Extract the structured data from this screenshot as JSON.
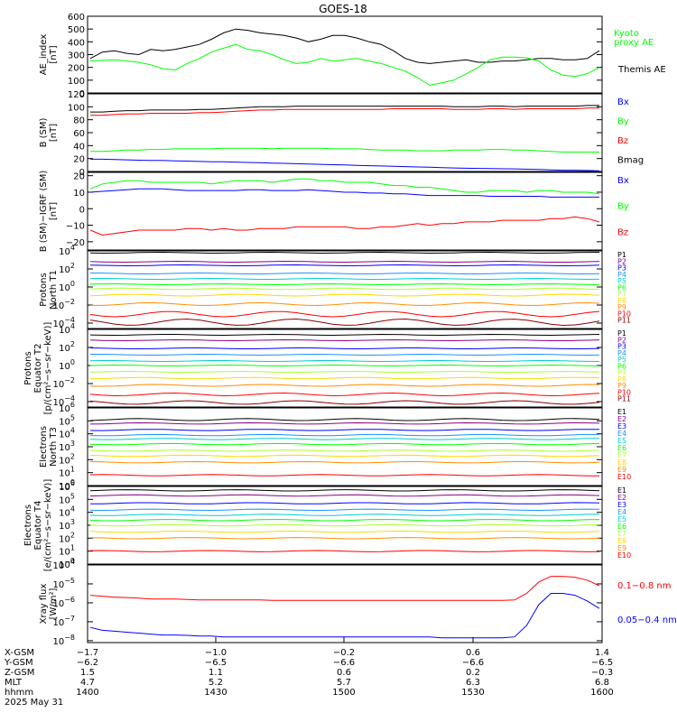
{
  "title": "GOES-18",
  "chart_data": [
    {
      "id": "ae",
      "type": "line",
      "ylabel": [
        "AE_index",
        "[nT]"
      ],
      "ylim": [
        0,
        600
      ],
      "log": false,
      "ticks": [
        "0",
        "100",
        "200",
        "300",
        "400",
        "500",
        "600"
      ],
      "tick_values": [
        0,
        100,
        200,
        300,
        400,
        500,
        600
      ],
      "series": [
        {
          "name": "Themis AE",
          "color": "#000000",
          "values": [
            270,
            320,
            330,
            310,
            300,
            340,
            330,
            340,
            360,
            380,
            420,
            470,
            500,
            490,
            470,
            460,
            450,
            430,
            400,
            420,
            450,
            450,
            430,
            400,
            380,
            330,
            270,
            240,
            230,
            240,
            250,
            260,
            240,
            240,
            250,
            250,
            260,
            270,
            270,
            260,
            260,
            270,
            330
          ]
        },
        {
          "name": "Kyoto proxy AE",
          "color": "#00ff00",
          "values": [
            250,
            255,
            260,
            250,
            240,
            220,
            190,
            180,
            230,
            270,
            320,
            350,
            380,
            340,
            330,
            300,
            260,
            230,
            240,
            270,
            250,
            260,
            270,
            250,
            230,
            200,
            170,
            120,
            60,
            80,
            100,
            150,
            200,
            260,
            280,
            280,
            275,
            250,
            180,
            140,
            130,
            150,
            200
          ]
        }
      ]
    },
    {
      "id": "bsm",
      "type": "line",
      "ylabel": [
        "B (SM)",
        "[nT]"
      ],
      "ylim": [
        0,
        120
      ],
      "log": false,
      "ticks": [
        "0",
        "20",
        "40",
        "60",
        "80",
        "100",
        "120"
      ],
      "tick_values": [
        0,
        20,
        40,
        60,
        80,
        100,
        120
      ],
      "series": [
        {
          "name": "Bx",
          "color": "#0000ff",
          "values": [
            19,
            19,
            18.5,
            18,
            17.5,
            17,
            17,
            16.5,
            16,
            15.5,
            15,
            15,
            14.5,
            14,
            13.5,
            13,
            12.5,
            12,
            11.5,
            11,
            10.5,
            10,
            9.5,
            9,
            8.5,
            8,
            7.5,
            7,
            6.5,
            6,
            5.5,
            5,
            4.8,
            4.5,
            4.2,
            4,
            3.5,
            3,
            2.5,
            2,
            2,
            1.5,
            1
          ]
        },
        {
          "name": "By",
          "color": "#00ff00",
          "values": [
            31,
            31,
            32,
            33,
            33,
            34,
            34,
            35,
            35,
            35,
            35,
            36,
            36,
            36,
            36,
            35,
            36,
            36,
            36,
            36,
            35,
            35,
            35,
            34,
            33,
            33,
            33,
            32,
            32,
            32,
            33,
            33,
            33,
            34,
            34,
            33,
            33,
            32,
            31,
            30,
            30,
            30,
            30
          ]
        },
        {
          "name": "Bz",
          "color": "#ff0000",
          "values": [
            87,
            87,
            88,
            89,
            89,
            90,
            90,
            90,
            90,
            91,
            91,
            92,
            93,
            94,
            95,
            95,
            96,
            96,
            96,
            96,
            96,
            96,
            96,
            96,
            96,
            97,
            97,
            97,
            97,
            97,
            96,
            96,
            96,
            97,
            97,
            96,
            97,
            97,
            97,
            97,
            97,
            98,
            98
          ]
        },
        {
          "name": "Bmag",
          "color": "#000000",
          "values": [
            92,
            92,
            93,
            94,
            94,
            95,
            95,
            95,
            95,
            96,
            96,
            97,
            98,
            99,
            100,
            100,
            100,
            101,
            101,
            101,
            101,
            101,
            101,
            101,
            101,
            101,
            101,
            101,
            101,
            101,
            100,
            100,
            100,
            101,
            101,
            100,
            101,
            101,
            101,
            101,
            101,
            102,
            102
          ]
        }
      ]
    },
    {
      "id": "bigrf",
      "type": "line",
      "ylabel": [
        "B (SM)−IGRF (SM)",
        "[nT]"
      ],
      "ylim": [
        -25,
        22
      ],
      "log": false,
      "ticks": [
        "−20",
        "−10",
        "0",
        "10",
        "20"
      ],
      "tick_values": [
        -20,
        -10,
        0,
        10,
        20
      ],
      "series": [
        {
          "name": "Bx",
          "color": "#0000ff",
          "values": [
            10,
            10.5,
            11,
            11.5,
            12,
            12,
            12,
            11.5,
            11,
            11,
            11,
            11,
            11,
            11.5,
            11.5,
            11,
            11,
            11,
            11.5,
            11,
            10.5,
            10,
            10,
            9.5,
            9.5,
            9,
            9,
            8.5,
            8,
            8,
            8,
            8,
            8,
            7.5,
            7.5,
            7.5,
            7.5,
            7.5,
            7,
            7,
            7,
            7,
            7
          ]
        },
        {
          "name": "By",
          "color": "#00ff00",
          "values": [
            12,
            15,
            16,
            17,
            17,
            16,
            16,
            16,
            16,
            16,
            15,
            16,
            17,
            17,
            17,
            16,
            17,
            18,
            18,
            17,
            17,
            16,
            16,
            16,
            15,
            14,
            14,
            13,
            13,
            12,
            11,
            10,
            10,
            11,
            11,
            11,
            10,
            11,
            11,
            10,
            10,
            10,
            9
          ]
        },
        {
          "name": "Bz",
          "color": "#ff0000",
          "values": [
            -13,
            -16,
            -15,
            -14,
            -13,
            -13,
            -13,
            -13,
            -12,
            -12,
            -13,
            -12,
            -13,
            -13,
            -12,
            -12,
            -12,
            -11,
            -11,
            -11,
            -11,
            -11,
            -12,
            -12,
            -11,
            -11,
            -10,
            -9,
            -10,
            -9,
            -9,
            -8,
            -8,
            -8,
            -7,
            -7,
            -7,
            -7,
            -6,
            -6,
            -5,
            -6,
            -8
          ]
        }
      ]
    },
    {
      "id": "pn",
      "type": "line",
      "log": true,
      "ylabel": [
        "Protons",
        "North T1"
      ],
      "ylim_exp": [
        -4.6,
        4
      ],
      "ticks": [
        "10",
        "10",
        "10",
        "10",
        "10"
      ],
      "tick_exps": [
        "4",
        "2",
        "0",
        "−2",
        "−4"
      ],
      "tick_values": [
        4,
        2,
        0,
        -2,
        -4
      ],
      "series": [
        {
          "name": "P1",
          "color": "#000000",
          "base": 3.8,
          "amp": 0.05
        },
        {
          "name": "P2",
          "color": "#8b008b",
          "base": 2.8,
          "amp": 0.05
        },
        {
          "name": "P3",
          "color": "#0000ff",
          "base": 2.4,
          "amp": 0.05
        },
        {
          "name": "P4",
          "color": "#1e90ff",
          "base": 1.5,
          "amp": 0.05
        },
        {
          "name": "P5",
          "color": "#00ced1",
          "base": 0.9,
          "amp": 0.05
        },
        {
          "name": "P6",
          "color": "#00ff00",
          "base": 0.3,
          "amp": 0.05
        },
        {
          "name": "P7",
          "color": "#adff2f",
          "base": -0.2,
          "amp": 0.08
        },
        {
          "name": "P8",
          "color": "#ffd700",
          "base": -0.9,
          "amp": 0.1
        },
        {
          "name": "P9",
          "color": "#ff8c00",
          "base": -1.9,
          "amp": 0.15
        },
        {
          "name": "P10",
          "color": "#ff0000",
          "base": -3.0,
          "amp": 0.3
        },
        {
          "name": "P11",
          "color": "#8b0000",
          "base": -3.9,
          "amp": 0.35
        }
      ]
    },
    {
      "id": "pe",
      "type": "line",
      "log": true,
      "ylabel": [
        "Protons",
        "Equator T2",
        "[p/(cm²−s−sr−keV)]"
      ],
      "ylim_exp": [
        -4.6,
        4
      ],
      "ticks": [
        "10",
        "10",
        "10",
        "10",
        "10"
      ],
      "tick_exps": [
        "4",
        "2",
        "0",
        "−2",
        "−4"
      ],
      "tick_values": [
        4,
        2,
        0,
        -2,
        -4
      ],
      "series": [
        {
          "name": "P1",
          "color": "#000000",
          "base": 3.4,
          "amp": 0.05
        },
        {
          "name": "P2",
          "color": "#8b008b",
          "base": 2.8,
          "amp": 0.05
        },
        {
          "name": "P3",
          "color": "#0000ff",
          "base": 1.9,
          "amp": 0.05
        },
        {
          "name": "P4",
          "color": "#1e90ff",
          "base": 1.2,
          "amp": 0.05
        },
        {
          "name": "P5",
          "color": "#00ced1",
          "base": 0.5,
          "amp": 0.05
        },
        {
          "name": "P6",
          "color": "#00ff00",
          "base": 0.0,
          "amp": 0.05
        },
        {
          "name": "P7",
          "color": "#adff2f",
          "base": -0.7,
          "amp": 0.05
        },
        {
          "name": "P8",
          "color": "#ffd700",
          "base": -1.4,
          "amp": 0.08
        },
        {
          "name": "P9",
          "color": "#ff8c00",
          "base": -2.2,
          "amp": 0.1
        },
        {
          "name": "P10",
          "color": "#ff0000",
          "base": -3.2,
          "amp": 0.15
        },
        {
          "name": "P11",
          "color": "#8b0000",
          "base": -4.1,
          "amp": 0.2
        }
      ]
    },
    {
      "id": "en",
      "type": "line",
      "log": true,
      "ylabel": [
        "Electrons",
        "North T3"
      ],
      "ylim_exp": [
        0,
        6
      ],
      "ticks": [
        "10",
        "10",
        "10",
        "10",
        "10",
        "10",
        "10"
      ],
      "tick_exps": [
        "6",
        "5",
        "4",
        "3",
        "2",
        "1",
        "0"
      ],
      "tick_values": [
        6,
        5,
        4,
        3,
        2,
        1,
        0
      ],
      "series": [
        {
          "name": "E1",
          "color": "#000000",
          "base": 5.1,
          "amp": 0.08
        },
        {
          "name": "E2",
          "color": "#8b008b",
          "base": 4.8,
          "amp": 0.05
        },
        {
          "name": "E3",
          "color": "#0000ff",
          "base": 4.3,
          "amp": 0.05
        },
        {
          "name": "E4",
          "color": "#1e90ff",
          "base": 3.9,
          "amp": 0.05
        },
        {
          "name": "E5",
          "color": "#00ced1",
          "base": 3.6,
          "amp": 0.05
        },
        {
          "name": "E6",
          "color": "#00ff00",
          "base": 3.2,
          "amp": 0.05
        },
        {
          "name": "E7",
          "color": "#adff2f",
          "base": 2.7,
          "amp": 0.05
        },
        {
          "name": "E8",
          "color": "#ffd700",
          "base": 2.3,
          "amp": 0.05
        },
        {
          "name": "E9",
          "color": "#ff8c00",
          "base": 1.8,
          "amp": 0.05
        },
        {
          "name": "E10",
          "color": "#ff0000",
          "base": 0.8,
          "amp": 0.05
        }
      ]
    },
    {
      "id": "ee",
      "type": "line",
      "log": true,
      "ylabel": [
        "Electrons",
        "Equator T4",
        "[e/(cm²−s−sr−keV)]"
      ],
      "ylim_exp": [
        0,
        6
      ],
      "ticks": [
        "10",
        "10",
        "10",
        "10",
        "10",
        "10",
        "10"
      ],
      "tick_exps": [
        "6",
        "5",
        "4",
        "3",
        "2",
        "1",
        "0"
      ],
      "tick_values": [
        6,
        5,
        4,
        3,
        2,
        1,
        0
      ],
      "series": [
        {
          "name": "E1",
          "color": "#000000",
          "base": 5.7,
          "amp": 0.05
        },
        {
          "name": "E2",
          "color": "#8b008b",
          "base": 5.3,
          "amp": 0.05
        },
        {
          "name": "E3",
          "color": "#0000ff",
          "base": 4.7,
          "amp": 0.05
        },
        {
          "name": "E4",
          "color": "#1e90ff",
          "base": 4.2,
          "amp": 0.05
        },
        {
          "name": "E5",
          "color": "#00ced1",
          "base": 3.8,
          "amp": 0.05
        },
        {
          "name": "E6",
          "color": "#00ff00",
          "base": 3.4,
          "amp": 0.05
        },
        {
          "name": "E7",
          "color": "#adff2f",
          "base": 3.0,
          "amp": 0.05
        },
        {
          "name": "E8",
          "color": "#ffd700",
          "base": 2.5,
          "amp": 0.05
        },
        {
          "name": "E9",
          "color": "#ff8c00",
          "base": 2.0,
          "amp": 0.05
        },
        {
          "name": "E10",
          "color": "#ff0000",
          "base": 1.0,
          "amp": 0.05
        }
      ]
    },
    {
      "id": "xray",
      "type": "line",
      "log": true,
      "ylabel": [
        "Xray flux",
        "[W/m²]"
      ],
      "ylim_exp": [
        -8.1,
        -4
      ],
      "ticks": [
        "10",
        "10",
        "10",
        "10",
        "10"
      ],
      "tick_exps": [
        "−4",
        "−5",
        "−6",
        "−7",
        "−8"
      ],
      "tick_values": [
        -4,
        -5,
        -6,
        -7,
        -8
      ],
      "series": [
        {
          "name": "0.1−0.8 nm",
          "color": "#ff0000",
          "values": [
            -5.6,
            -5.65,
            -5.7,
            -5.72,
            -5.75,
            -5.8,
            -5.8,
            -5.8,
            -5.82,
            -5.85,
            -5.85,
            -5.85,
            -5.85,
            -5.85,
            -5.85,
            -5.87,
            -5.87,
            -5.87,
            -5.87,
            -5.87,
            -5.87,
            -5.87,
            -5.87,
            -5.87,
            -5.87,
            -5.87,
            -5.87,
            -5.87,
            -5.87,
            -5.87,
            -5.87,
            -5.87,
            -5.87,
            -5.87,
            -5.87,
            -5.85,
            -5.5,
            -4.9,
            -4.6,
            -4.6,
            -4.65,
            -4.8,
            -5.1
          ]
        },
        {
          "name": "0.05−0.4 nm",
          "color": "#0000ff",
          "values": [
            -7.3,
            -7.45,
            -7.5,
            -7.55,
            -7.6,
            -7.65,
            -7.7,
            -7.7,
            -7.72,
            -7.75,
            -7.75,
            -7.8,
            -7.8,
            -7.8,
            -7.8,
            -7.8,
            -7.8,
            -7.8,
            -7.8,
            -7.8,
            -7.8,
            -7.8,
            -7.8,
            -7.8,
            -7.8,
            -7.8,
            -7.8,
            -7.8,
            -7.8,
            -7.85,
            -7.85,
            -7.85,
            -7.85,
            -7.85,
            -7.85,
            -7.8,
            -7.2,
            -6.1,
            -5.5,
            -5.5,
            -5.6,
            -5.9,
            -6.3
          ]
        }
      ]
    }
  ],
  "legends": {
    "ae": [
      {
        "text": "Kyoto",
        "color": "#00ff00"
      },
      {
        "text": "proxy AE",
        "color": "#00ff00"
      },
      {
        "text": "Themis AE",
        "color": "#000000"
      }
    ],
    "xray": [
      {
        "text": "0.1−0.8 nm",
        "color": "#ff0000"
      },
      {
        "text": "0.05−0.4 nm",
        "color": "#0000ff"
      }
    ]
  },
  "time_axis": {
    "rows": [
      {
        "label": "X-GSM",
        "values": [
          "−1.7",
          "−1.0",
          "−0.2",
          "0.6",
          "1.4"
        ]
      },
      {
        "label": "Y-GSM",
        "values": [
          "−6.2",
          "−6.5",
          "−6.6",
          "−6.6",
          "−6.5"
        ]
      },
      {
        "label": "Z-GSM",
        "values": [
          "1.5",
          "1.1",
          "0.6",
          "0.2",
          "−0.3"
        ]
      },
      {
        "label": "MLT",
        "values": [
          "4.7",
          "5.2",
          "5.7",
          "6.3",
          "6.8"
        ]
      },
      {
        "label": "hhmm",
        "values": [
          "1400",
          "1430",
          "1500",
          "1530",
          "1600"
        ]
      }
    ],
    "date": "2025 May 31"
  }
}
